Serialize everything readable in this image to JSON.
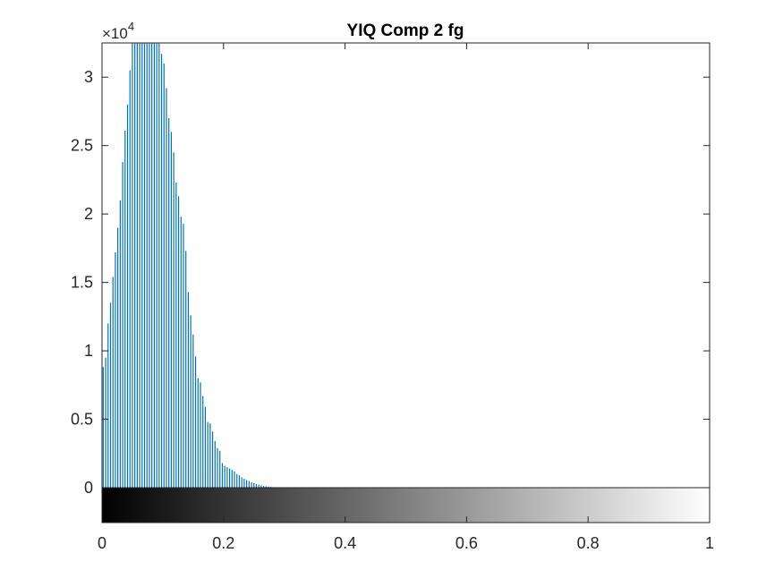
{
  "chart_data": {
    "type": "bar",
    "title": "YIQ Comp 2 fg",
    "xlabel": "",
    "ylabel": "",
    "xlim": [
      0,
      1
    ],
    "ylim": [
      0,
      32500
    ],
    "y_exponent_label": "×10",
    "y_exponent": "4",
    "x_ticks": [
      {
        "value": 0,
        "label": "0"
      },
      {
        "value": 0.2,
        "label": "0.2"
      },
      {
        "value": 0.4,
        "label": "0.4"
      },
      {
        "value": 0.6,
        "label": "0.6"
      },
      {
        "value": 0.8,
        "label": "0.8"
      },
      {
        "value": 1,
        "label": "1"
      }
    ],
    "y_ticks": [
      {
        "value": 0,
        "label": "0"
      },
      {
        "value": 5000,
        "label": "0.5"
      },
      {
        "value": 10000,
        "label": "1"
      },
      {
        "value": 15000,
        "label": "1.5"
      },
      {
        "value": 20000,
        "label": "2"
      },
      {
        "value": 25000,
        "label": "2.5"
      },
      {
        "value": 30000,
        "label": "3"
      }
    ],
    "bar_color": "#0072bd",
    "grid": false,
    "colorbar": {
      "from": "#000000",
      "to": "#ffffff",
      "range": [
        0,
        1
      ]
    },
    "series": [
      {
        "x": [
          0.002,
          0.006,
          0.01,
          0.014,
          0.018,
          0.022,
          0.026,
          0.03,
          0.034,
          0.038,
          0.042,
          0.046,
          0.05,
          0.054,
          0.058,
          0.062,
          0.066,
          0.07,
          0.074,
          0.078,
          0.082,
          0.086,
          0.09,
          0.094,
          0.098,
          0.102,
          0.106,
          0.11,
          0.114,
          0.118,
          0.122,
          0.126,
          0.13,
          0.134,
          0.138,
          0.142,
          0.146,
          0.15,
          0.154,
          0.158,
          0.162,
          0.166,
          0.17,
          0.174,
          0.178,
          0.182,
          0.186,
          0.19,
          0.194,
          0.198,
          0.202,
          0.206,
          0.21,
          0.214,
          0.218,
          0.222,
          0.226,
          0.23,
          0.234,
          0.238,
          0.242,
          0.246,
          0.25,
          0.254,
          0.258,
          0.262,
          0.266,
          0.27,
          0.274,
          0.278,
          0.282,
          0.286,
          0.29,
          0.294,
          0.298
        ],
        "values": [
          8800,
          9500,
          12000,
          13500,
          15400,
          17200,
          19000,
          21000,
          23800,
          26100,
          28000,
          30500,
          32500,
          32800,
          32800,
          32800,
          32800,
          32800,
          32800,
          32800,
          32800,
          32800,
          32800,
          32600,
          31700,
          31000,
          29200,
          27000,
          26000,
          24500,
          22300,
          21300,
          19800,
          19300,
          17300,
          14300,
          12600,
          11200,
          9600,
          8000,
          7700,
          6700,
          5900,
          4800,
          4700,
          4100,
          3400,
          2900,
          2700,
          1800,
          1600,
          1500,
          1400,
          1300,
          1200,
          1000,
          900,
          750,
          650,
          550,
          480,
          400,
          330,
          270,
          220,
          170,
          130,
          100,
          75,
          55,
          40,
          28,
          18,
          10,
          5
        ]
      }
    ]
  }
}
